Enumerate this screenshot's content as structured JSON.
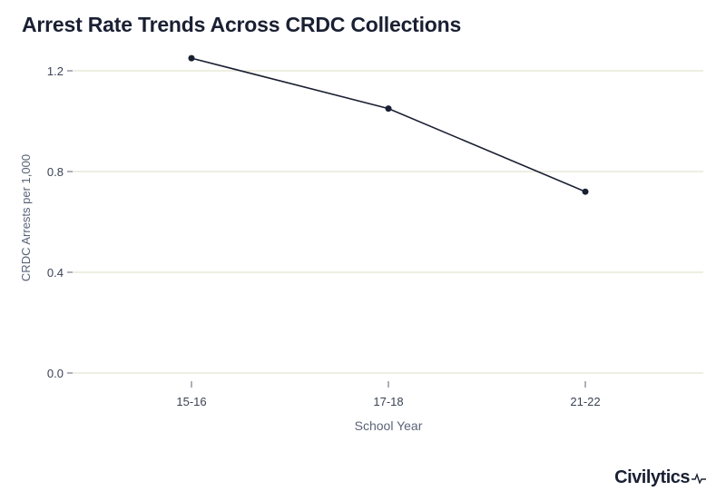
{
  "chart_data": {
    "type": "line",
    "title": "Arrest Rate Trends Across CRDC Collections",
    "xlabel": "School Year",
    "ylabel": "CRDC Arrests per 1,000",
    "categories": [
      "15-16",
      "17-18",
      "21-22"
    ],
    "series": [
      {
        "values": [
          1.25,
          1.05,
          0.72
        ]
      }
    ],
    "ylim": [
      0,
      1.2
    ],
    "yticks": [
      0.0,
      0.4,
      0.8,
      1.2
    ],
    "ytick_labels": [
      "0.0",
      "0.4",
      "0.8",
      "1.2"
    ],
    "grid": true,
    "colors": {
      "line": "#1a2033",
      "grid": "#dcdcc4",
      "axis_text": "#5a6478",
      "title": "#1a2033"
    }
  },
  "brand": {
    "name": "Civilytics"
  }
}
